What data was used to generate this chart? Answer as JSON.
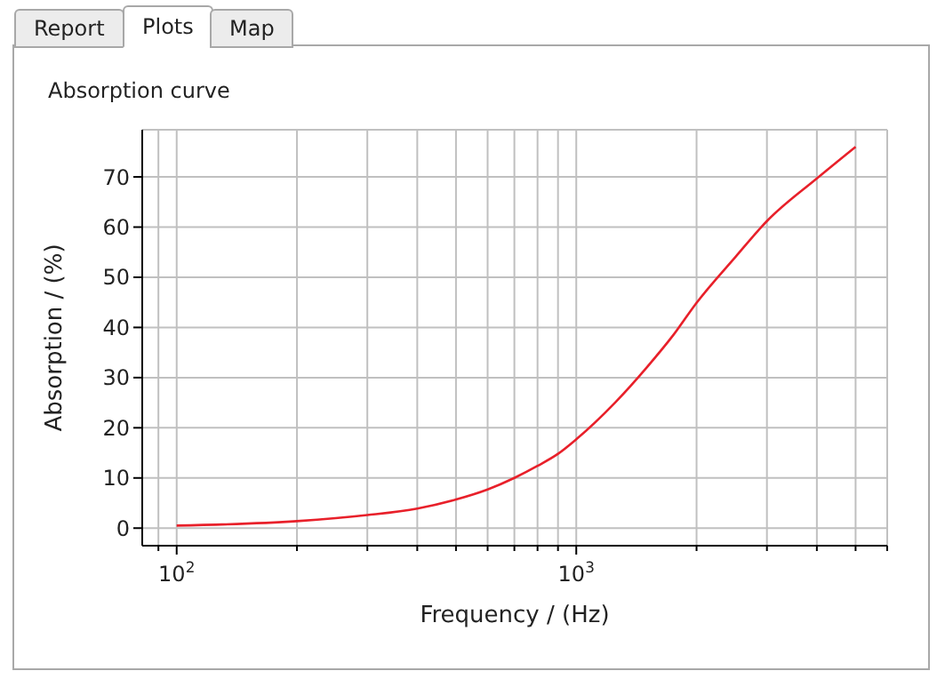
{
  "chart_data": {
    "type": "line",
    "title": "Absorption curve",
    "xlabel": "Frequency / (Hz)",
    "ylabel": "Absorption / (%)",
    "annotations": [
      "Report",
      "Plots",
      "Map"
    ],
    "x": [
      100,
      200,
      300,
      400,
      500,
      600,
      700,
      800,
      900,
      1000,
      1250,
      1500,
      1750,
      2000,
      2500,
      3000,
      4000,
      5000
    ],
    "series": [
      {
        "color": "#e8202a",
        "values": [
          0.5,
          1.4,
          2.6,
          3.9,
          5.7,
          7.7,
          10.0,
          12.4,
          14.8,
          17.7,
          25.0,
          32.0,
          38.5,
          44.9,
          54.0,
          61.2,
          69.7,
          76.0
        ]
      }
    ],
    "log": "x",
    "xlim": [
      82,
      6000
    ],
    "ylim": [
      -3.5,
      79.4
    ],
    "xticks": [
      {
        "value": 90,
        "label": null
      },
      {
        "value": 100,
        "label": "10$^{2}$"
      },
      {
        "value": 200,
        "label": null
      },
      {
        "value": 300,
        "label": null
      },
      {
        "value": 400,
        "label": null
      },
      {
        "value": 500,
        "label": null
      },
      {
        "value": 600,
        "label": null
      },
      {
        "value": 700,
        "label": null
      },
      {
        "value": 800,
        "label": null
      },
      {
        "value": 900,
        "label": null
      },
      {
        "value": 1000,
        "label": "10$^{3}$"
      },
      {
        "value": 2000,
        "label": null
      },
      {
        "value": 3000,
        "label": null
      },
      {
        "value": 4000,
        "label": null
      },
      {
        "value": 5000,
        "label": null
      },
      {
        "value": 6000,
        "label": null
      }
    ],
    "yticks": [
      0,
      10,
      20,
      30,
      40,
      50,
      60,
      70
    ],
    "grid": true,
    "legend": false,
    "marker": "none",
    "line_style": "solid"
  }
}
